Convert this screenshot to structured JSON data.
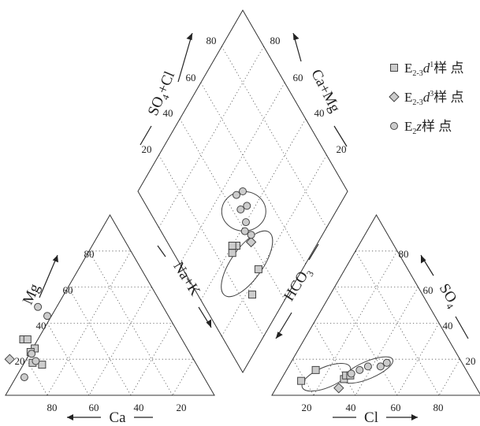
{
  "chart_data": {
    "type": "scatter",
    "subtype": "piper-trilinear-diagram",
    "tick_labels": [
      "20",
      "40",
      "60",
      "80"
    ],
    "axes": {
      "cation": {
        "mg": {
          "label": "Mg"
        },
        "ca": {
          "label": "Ca"
        },
        "na_k": {
          "label": "Na+K"
        }
      },
      "anion": {
        "so4": {
          "label": "SO",
          "sub": "4"
        },
        "cl": {
          "label": "Cl"
        },
        "hco3": {
          "label": "HCO",
          "sub": "3"
        }
      },
      "diamond": {
        "so4_cl": {
          "label_a": "SO",
          "sub": "4",
          "label_b": "+Cl"
        },
        "ca_mg": {
          "label": "Ca+Mg"
        }
      }
    },
    "legend": {
      "placement": "top-right",
      "entries": [
        {
          "symbol": "square",
          "pre": "E",
          "sub": "2-3",
          "ital": "d",
          "sup": "1",
          "post": "样 点"
        },
        {
          "symbol": "diamond",
          "pre": "E",
          "sub": "2-3",
          "ital": "d",
          "sup": "3",
          "post": "样 点"
        },
        {
          "symbol": "circle",
          "pre": "E",
          "sub": "2",
          "ital": "z",
          "sup": "",
          "post": "样 点"
        }
      ]
    },
    "series": [
      {
        "symbol": "square",
        "cation_points": [
          [
            76,
            31
          ],
          [
            74,
            31
          ],
          [
            73,
            26
          ],
          [
            76,
            24
          ],
          [
            78,
            18
          ],
          [
            74,
            17
          ]
        ],
        "anion_points": [
          [
            10,
            8
          ],
          [
            14,
            14
          ],
          [
            30,
            9
          ],
          [
            30,
            11
          ],
          [
            32,
            11
          ]
        ],
        "diamond_points": [
          [
            17,
            26
          ],
          [
            21,
            36
          ],
          [
            38,
            28
          ],
          [
            38,
            32
          ],
          [
            40,
            30
          ]
        ]
      },
      {
        "symbol": "diamond",
        "cation_points": [
          [
            88,
            20
          ]
        ],
        "anion_points": [
          [
            30,
            4
          ]
        ],
        "diamond_points": [
          [
            32,
            40
          ]
        ]
      },
      {
        "symbol": "circle",
        "cation_points": [
          [
            60,
            49
          ],
          [
            58,
            44
          ],
          [
            76,
            23
          ],
          [
            76,
            19
          ],
          [
            86,
            10
          ]
        ],
        "anion_points": [
          [
            32,
            12
          ],
          [
            35,
            14
          ],
          [
            38,
            16
          ],
          [
            44,
            16
          ],
          [
            46,
            18
          ]
        ],
        "diamond_points": [
          [
            34,
            42
          ],
          [
            38,
            40
          ],
          [
            40,
            43
          ],
          [
            44,
            48
          ],
          [
            46,
            44
          ],
          [
            50,
            50
          ],
          [
            52,
            46
          ]
        ]
      }
    ],
    "groupings": [
      {
        "region": "anion",
        "center": [
          21,
          10
        ],
        "rx": 33,
        "ry": 13,
        "tilt": -23
      },
      {
        "region": "anion",
        "center": [
          39,
          14
        ],
        "rx": 34,
        "ry": 11,
        "tilt": -23
      },
      {
        "region": "diamond",
        "center": [
          28,
          32
        ],
        "rx": 20,
        "ry": 49,
        "tilt": 35
      },
      {
        "region": "diamond",
        "center": [
          44,
          45
        ],
        "rx": 28,
        "ry": 25,
        "tilt": 0
      }
    ]
  }
}
